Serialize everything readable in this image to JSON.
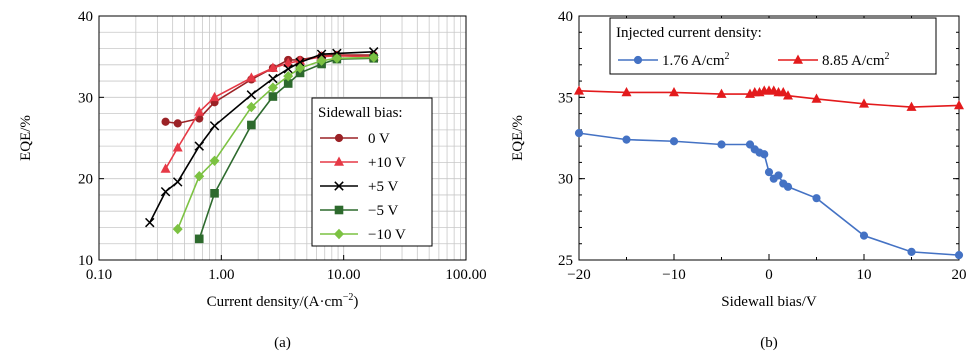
{
  "chart_data": [
    {
      "type": "line",
      "panel_label": "(a)",
      "xlabel": "Current density/(A·cm",
      "xlabel_sup": "−2",
      "xlabel_close": ")",
      "ylabel": "EQE/%",
      "xscale": "log",
      "xlim": [
        0.1,
        100
      ],
      "ylim": [
        10,
        40
      ],
      "xticks": [
        0.1,
        1,
        10,
        100
      ],
      "xtick_labels": [
        "0.10",
        "1.00",
        "10.00",
        "100.00"
      ],
      "yticks": [
        10,
        20,
        30,
        40
      ],
      "ytick_labels": [
        "10",
        "20",
        "30",
        "40"
      ],
      "grid": true,
      "legend": {
        "title": "Sidewall bias:",
        "placement": "right"
      },
      "series": [
        {
          "name": "0 V",
          "marker": "circle",
          "color": "#9b2226",
          "x": [
            0.35,
            0.44,
            0.66,
            0.88,
            1.76,
            2.64,
            3.52,
            4.4,
            6.6,
            8.8,
            17.6
          ],
          "y": [
            27.0,
            26.8,
            27.4,
            29.4,
            32.2,
            33.6,
            34.6,
            34.6,
            35.1,
            35.2,
            35.2
          ]
        },
        {
          "name": "+10 V",
          "marker": "triangle",
          "color": "#e63946",
          "x": [
            0.35,
            0.44,
            0.66,
            0.88,
            1.76,
            2.64,
            3.52,
            4.4,
            6.6,
            8.8,
            17.6
          ],
          "y": [
            21.2,
            23.8,
            28.2,
            30.0,
            32.4,
            33.6,
            34.2,
            34.5,
            35.0,
            35.1,
            35.0
          ]
        },
        {
          "name": "+5 V",
          "marker": "x",
          "color": "#000000",
          "x": [
            0.26,
            0.35,
            0.44,
            0.66,
            0.88,
            1.76,
            2.64,
            3.52,
            4.4,
            6.6,
            8.8,
            17.6
          ],
          "y": [
            14.6,
            18.4,
            19.6,
            24.0,
            26.5,
            30.3,
            32.3,
            33.5,
            34.3,
            35.3,
            35.4,
            35.6
          ]
        },
        {
          "name": "−5 V",
          "marker": "square",
          "color": "#2d6a2d",
          "x": [
            0.66,
            0.88,
            1.76,
            2.64,
            3.52,
            4.4,
            6.6,
            8.8,
            17.6
          ],
          "y": [
            12.6,
            18.2,
            26.6,
            30.1,
            31.7,
            33.0,
            34.1,
            34.7,
            34.8
          ]
        },
        {
          "name": "−10 V",
          "marker": "diamond",
          "color": "#7cc242",
          "x": [
            0.44,
            0.66,
            0.88,
            1.76,
            2.64,
            3.52,
            4.4,
            6.6,
            8.8,
            17.6
          ],
          "y": [
            13.8,
            20.3,
            22.2,
            28.8,
            31.2,
            32.6,
            33.6,
            34.5,
            34.8,
            34.9
          ]
        }
      ]
    },
    {
      "type": "line",
      "panel_label": "(b)",
      "xlabel": "Sidewall bias/V",
      "ylabel": "EQE/%",
      "xlim": [
        -20,
        20
      ],
      "ylim": [
        25,
        40
      ],
      "xticks": [
        -20,
        -10,
        0,
        10,
        20
      ],
      "xtick_labels": [
        "−20",
        "−10",
        "0",
        "10",
        "20"
      ],
      "yticks": [
        25,
        30,
        35,
        40
      ],
      "ytick_labels": [
        "25",
        "30",
        "35",
        "40"
      ],
      "grid": false,
      "legend": {
        "title": "Injected current density:",
        "placement": "top"
      },
      "series": [
        {
          "name": "1.76 A/cm",
          "name_sup": "2",
          "marker": "circle",
          "color": "#4472c4",
          "x": [
            -20,
            -15,
            -10,
            -5,
            -2,
            -1.5,
            -1,
            -0.5,
            0,
            0.5,
            1,
            1.5,
            2,
            5,
            10,
            15,
            20
          ],
          "y": [
            32.8,
            32.4,
            32.3,
            32.1,
            32.1,
            31.8,
            31.6,
            31.5,
            30.4,
            30.0,
            30.2,
            29.7,
            29.5,
            28.8,
            26.5,
            25.5,
            25.3
          ]
        },
        {
          "name": "8.85 A/cm",
          "name_sup": "2",
          "marker": "triangle",
          "color": "#e31a1c",
          "x": [
            -20,
            -15,
            -10,
            -5,
            -2,
            -1.5,
            -1,
            -0.5,
            0,
            0.5,
            1,
            1.5,
            2,
            5,
            10,
            15,
            20
          ],
          "y": [
            35.4,
            35.3,
            35.3,
            35.2,
            35.2,
            35.3,
            35.3,
            35.4,
            35.4,
            35.4,
            35.3,
            35.3,
            35.1,
            34.9,
            34.6,
            34.4,
            34.5
          ]
        }
      ]
    }
  ]
}
